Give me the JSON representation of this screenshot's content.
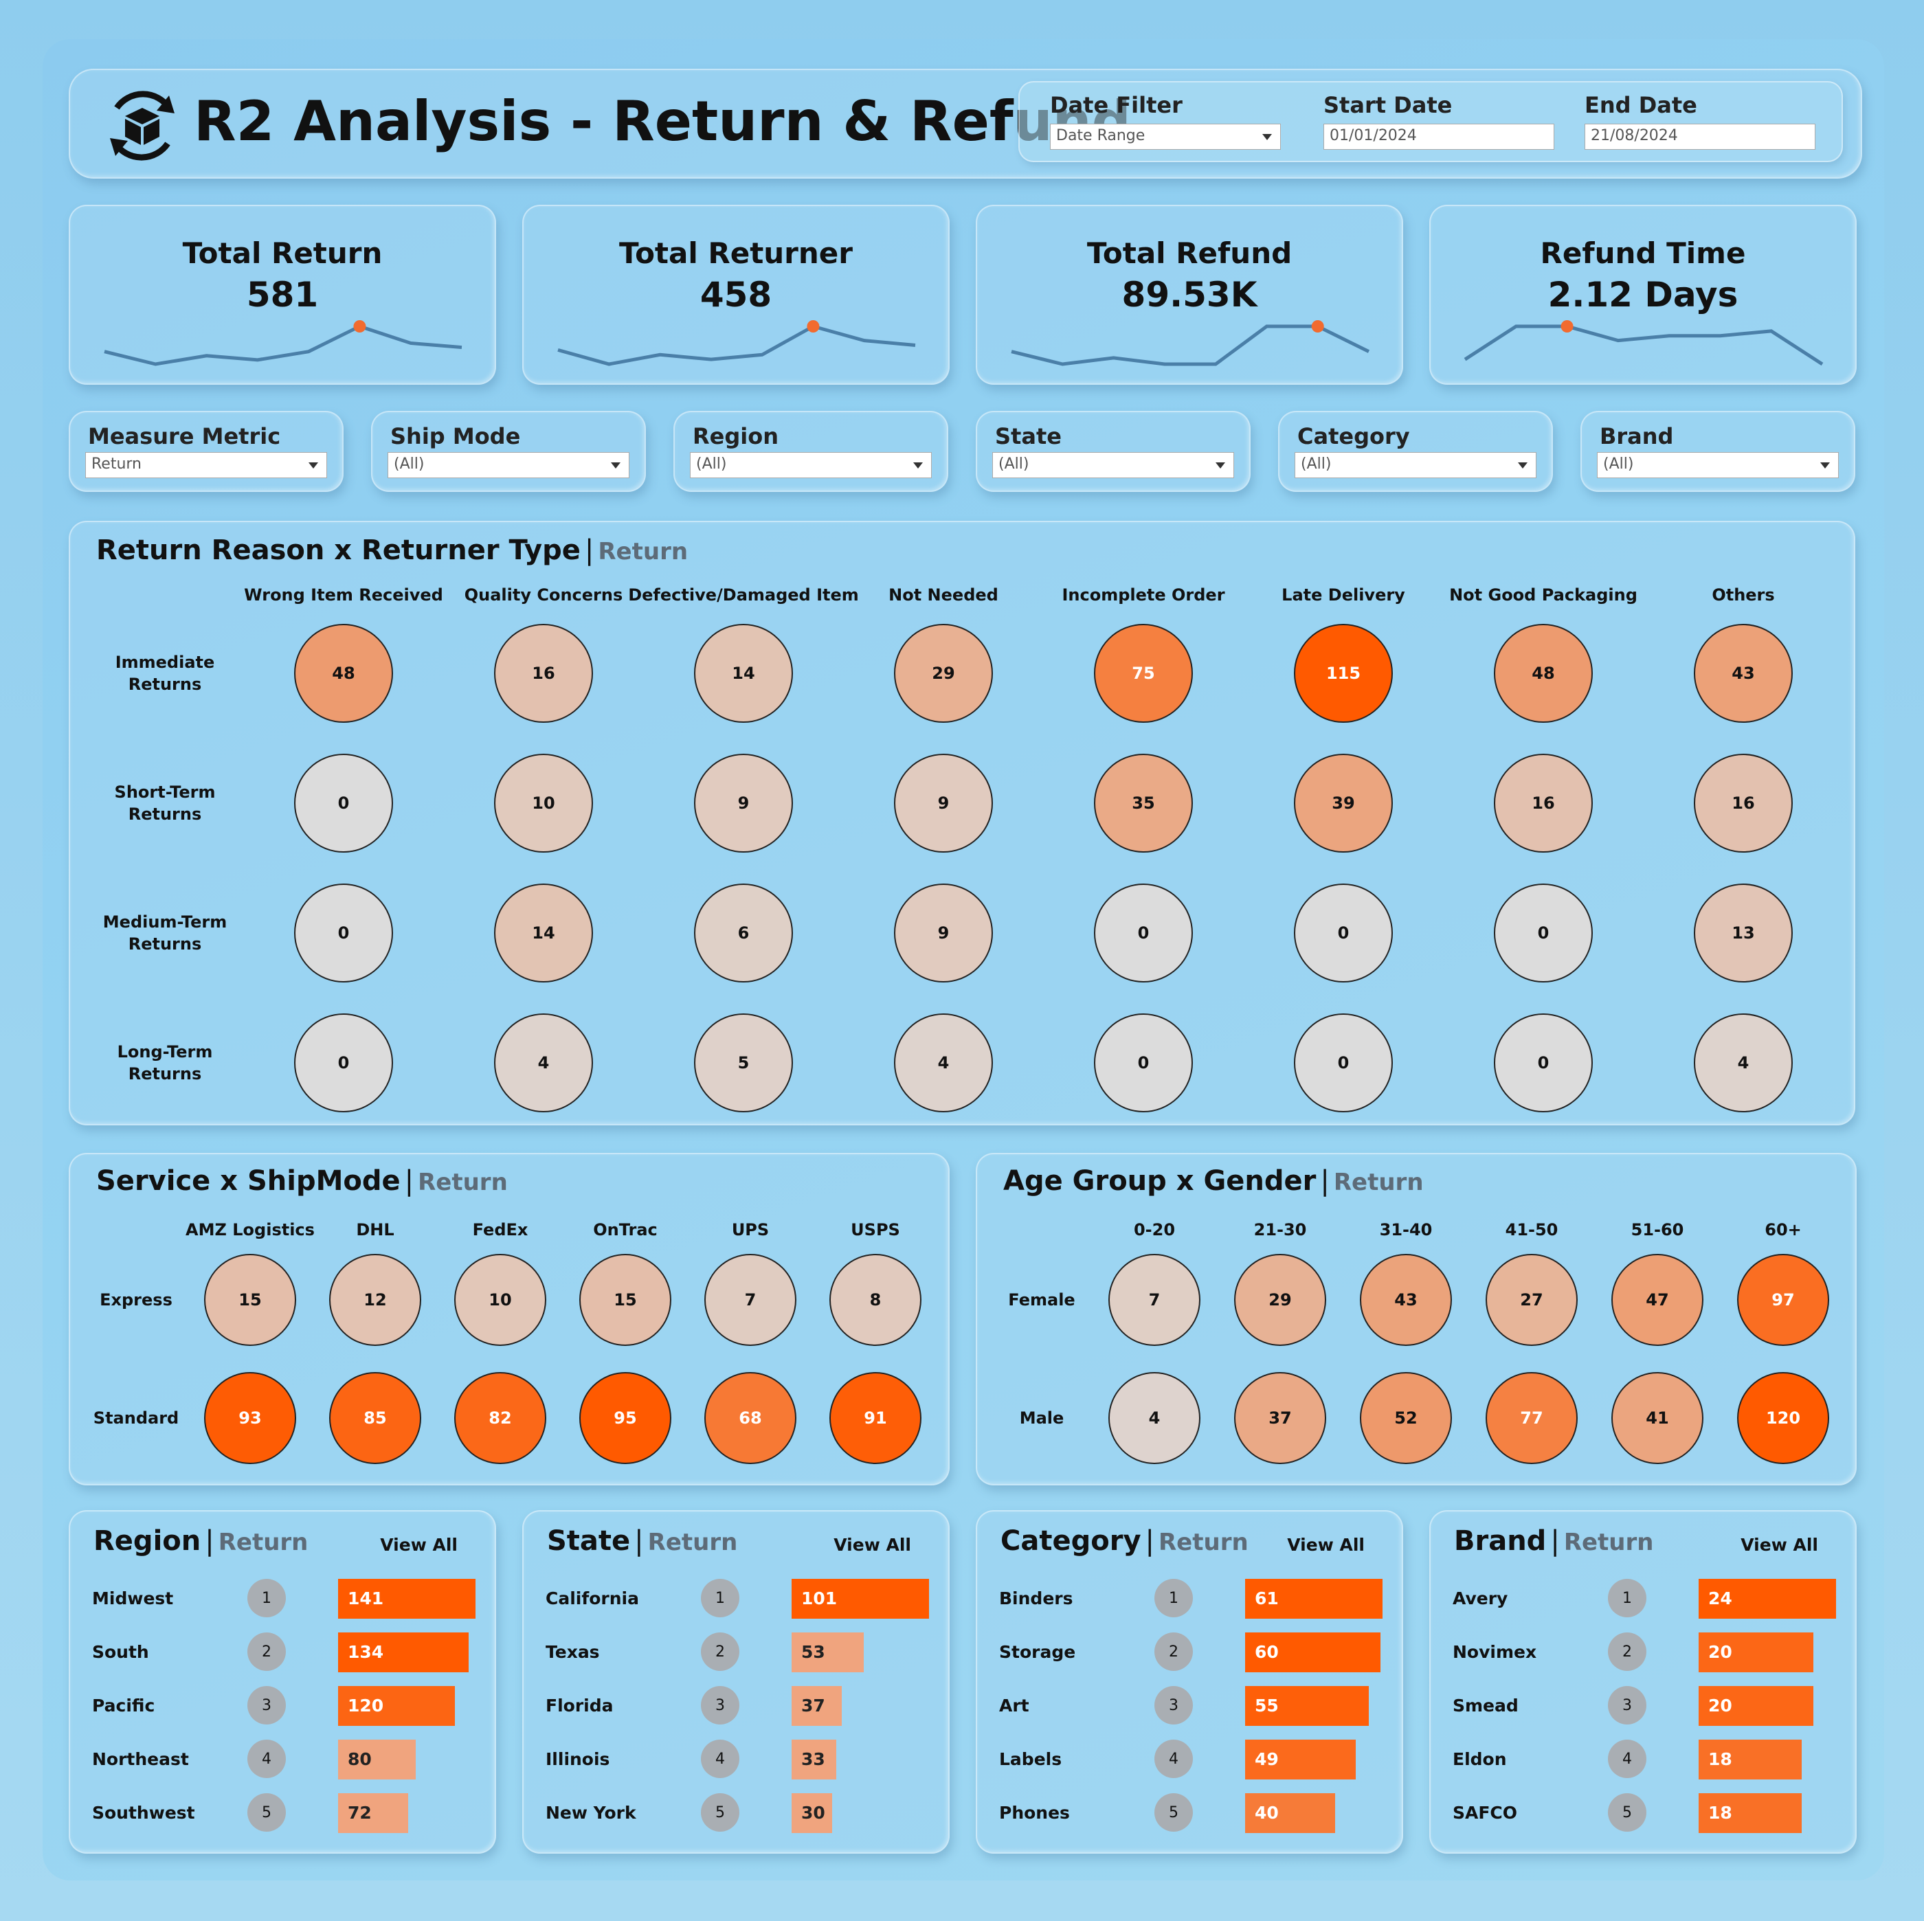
{
  "header": {
    "title": "R2 Analysis - Return & Refund",
    "date_filter": {
      "label": "Date Filter",
      "value": "Date Range"
    },
    "start_date": {
      "label": "Start Date",
      "value": "01/01/2024"
    },
    "end_date": {
      "label": "End Date",
      "value": "21/08/2024"
    }
  },
  "kpis": [
    {
      "title": "Total Return",
      "value": "581",
      "trend": [
        4,
        1,
        3,
        2,
        4,
        10,
        6,
        5
      ],
      "highlight": 5
    },
    {
      "title": "Total Returner",
      "value": "458",
      "trend": [
        4,
        1,
        3,
        2,
        3,
        9,
        6,
        5
      ],
      "highlight": 5
    },
    {
      "title": "Total Refund",
      "value": "89.53K",
      "trend": [
        4,
        2,
        3,
        2,
        2,
        8,
        8,
        4
      ],
      "highlight": 6
    },
    {
      "title": "Refund Time",
      "value": "2.12 Days",
      "trend": [
        1,
        8,
        8,
        5,
        6,
        6,
        7,
        0
      ],
      "highlight": 2
    }
  ],
  "filters": [
    {
      "label": "Measure Metric",
      "value": "Return"
    },
    {
      "label": "Ship Mode",
      "value": "(All)"
    },
    {
      "label": "Region",
      "value": "(All)"
    },
    {
      "label": "State",
      "value": "(All)"
    },
    {
      "label": "Category",
      "value": "(All)"
    },
    {
      "label": "Brand",
      "value": "(All)"
    }
  ],
  "reason_matrix": {
    "title": "Return Reason x Returner Type",
    "metric": "Return",
    "columns": [
      "Wrong Item Received",
      "Quality Concerns",
      "Defective/Damaged Item",
      "Not Needed",
      "Incomplete Order",
      "Late Delivery",
      "Not Good Packaging",
      "Others"
    ],
    "rows": [
      {
        "label": "Immediate\nReturns",
        "values": [
          48,
          16,
          14,
          29,
          75,
          115,
          48,
          43
        ]
      },
      {
        "label": "Short-Term\nReturns",
        "values": [
          0,
          10,
          9,
          9,
          35,
          39,
          16,
          16
        ]
      },
      {
        "label": "Medium-Term\nReturns",
        "values": [
          0,
          14,
          6,
          9,
          0,
          0,
          0,
          13
        ]
      },
      {
        "label": "Long-Term\nReturns",
        "values": [
          0,
          4,
          5,
          4,
          0,
          0,
          0,
          4
        ]
      }
    ]
  },
  "service_matrix": {
    "title": "Service x ShipMode",
    "metric": "Return",
    "columns": [
      "AMZ Logistics",
      "DHL",
      "FedEx",
      "OnTrac",
      "UPS",
      "USPS"
    ],
    "rows": [
      {
        "label": "Express",
        "values": [
          15,
          12,
          10,
          15,
          7,
          8
        ]
      },
      {
        "label": "Standard",
        "values": [
          93,
          85,
          82,
          95,
          68,
          91
        ]
      }
    ]
  },
  "age_matrix": {
    "title": "Age Group x Gender",
    "metric": "Return",
    "columns": [
      "0-20",
      "21-30",
      "31-40",
      "41-50",
      "51-60",
      "60+"
    ],
    "rows": [
      {
        "label": "Female",
        "values": [
          7,
          29,
          43,
          27,
          47,
          97
        ]
      },
      {
        "label": "Male",
        "values": [
          4,
          37,
          52,
          77,
          41,
          120
        ]
      }
    ]
  },
  "top_lists": [
    {
      "title": "Region",
      "metric": "Return",
      "view_all": "View All",
      "items": [
        {
          "name": "Midwest",
          "value": 141
        },
        {
          "name": "South",
          "value": 134
        },
        {
          "name": "Pacific",
          "value": 120
        },
        {
          "name": "Northeast",
          "value": 80
        },
        {
          "name": "Southwest",
          "value": 72
        }
      ]
    },
    {
      "title": "State",
      "metric": "Return",
      "view_all": "View All",
      "items": [
        {
          "name": "California",
          "value": 101
        },
        {
          "name": "Texas",
          "value": 53
        },
        {
          "name": "Florida",
          "value": 37
        },
        {
          "name": "Illinois",
          "value": 33
        },
        {
          "name": "New York",
          "value": 30
        }
      ]
    },
    {
      "title": "Category",
      "metric": "Return",
      "view_all": "View All",
      "items": [
        {
          "name": "Binders",
          "value": 61
        },
        {
          "name": "Storage",
          "value": 60
        },
        {
          "name": "Art",
          "value": 55
        },
        {
          "name": "Labels",
          "value": 49
        },
        {
          "name": "Phones",
          "value": 40
        }
      ]
    },
    {
      "title": "Brand",
      "metric": "Return",
      "view_all": "View All",
      "items": [
        {
          "name": "Avery",
          "value": 24
        },
        {
          "name": "Novimex",
          "value": 20
        },
        {
          "name": "Smead",
          "value": 20
        },
        {
          "name": "Eldon",
          "value": 18
        },
        {
          "name": "SAFCO",
          "value": 18
        }
      ]
    }
  ],
  "colors": {
    "accent": "#ff5a00",
    "neutral_bubble": "#dcdcdc",
    "sparkline": "#4a7fa8",
    "rank_badge": "#a9aeb3"
  }
}
